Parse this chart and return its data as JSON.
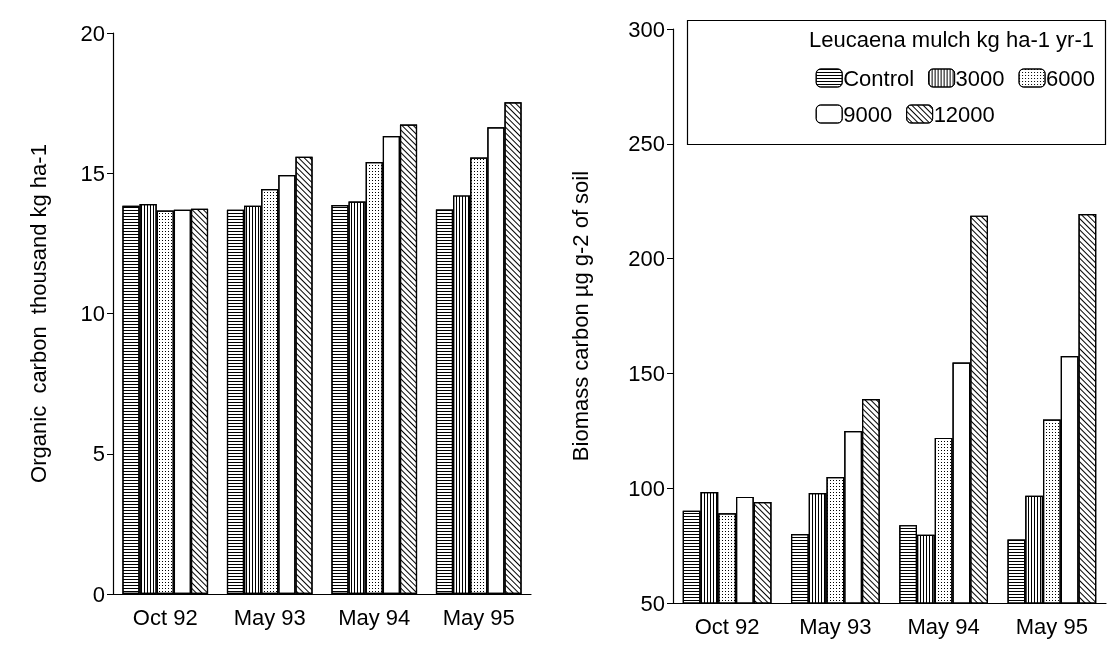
{
  "chart_data": [
    {
      "type": "bar",
      "ylabel": "Organic  carbon  thousand kg ha-1",
      "categories": [
        "Oct 92",
        "May 93",
        "May 94",
        "May 95"
      ],
      "series": [
        {
          "color": "#ffffff",
          "values": [
            13.84,
            13.7,
            13.87,
            13.71
          ]
        },
        {
          "color": "#ffffff",
          "values": [
            13.9,
            13.84,
            13.99,
            14.21
          ]
        },
        {
          "color": "#ffffff",
          "values": [
            13.67,
            14.44,
            15.4,
            15.56
          ]
        },
        {
          "color": "#ffffff",
          "values": [
            13.7,
            14.94,
            16.33,
            16.64
          ]
        },
        {
          "color": "#ffffff",
          "values": [
            13.73,
            15.59,
            16.74,
            17.53
          ]
        }
      ],
      "ylim": [
        0,
        20
      ],
      "yticks": [
        0,
        5,
        10,
        15,
        20
      ],
      "grid": false,
      "legend": false
    },
    {
      "type": "bar",
      "ylabel": "Biomass carbon µg g-2 of soil",
      "legend_title": "Leucaena mulch kg ha-1 yr-1",
      "categories": [
        "Oct 92",
        "May 93",
        "May 94",
        "May 95"
      ],
      "series": [
        {
          "name": "Control",
          "color": "#ffffff",
          "values": [
            90.2,
            80,
            83.9,
            77.7
          ]
        },
        {
          "name": "3000",
          "color": "#ffffff",
          "values": [
            98.3,
            97.9,
            79.7,
            96.7
          ]
        },
        {
          "name": "6000",
          "color": "#ffffff",
          "values": [
            89.1,
            104.9,
            121.9,
            129.9
          ]
        },
        {
          "name": "9000",
          "color": "#ffffff",
          "values": [
            96.2,
            124.9,
            154.7,
            157.6
          ]
        },
        {
          "name": "12000",
          "color": "#ffffff",
          "values": [
            94,
            138.8,
            218.7,
            219.4
          ]
        }
      ],
      "ylim": [
        50,
        300
      ],
      "yticks": [
        50,
        100,
        150,
        200,
        250,
        300
      ],
      "grid": false,
      "legend": "top right"
    }
  ]
}
